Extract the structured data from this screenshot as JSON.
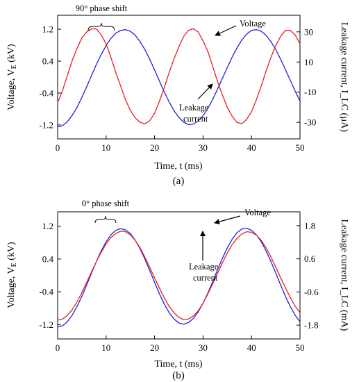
{
  "chart_data": [
    {
      "type": "line",
      "panel_label": "(a)",
      "xlabel": "Time, t (ms)",
      "ylabel_left": "Voltage, V_E (kV)",
      "ylabel_right": "Leakage current, I_LC (µA)",
      "xlim": [
        0,
        50
      ],
      "ylim_left": [
        -1.55,
        1.55
      ],
      "ylim_right": [
        -41,
        41
      ],
      "xticks": [
        "0",
        "10",
        "20",
        "30",
        "40",
        "50"
      ],
      "yticks_left": [
        "1.2",
        "0.4",
        "-0.4",
        "-1.2"
      ],
      "yticks_right": [
        "30",
        "10",
        "-10",
        "-30"
      ],
      "annotations": {
        "phase_shift": "90° phase shift",
        "voltage": "Voltage",
        "leakage": [
          "Leakage",
          "current"
        ]
      },
      "series": [
        {
          "axis": "left",
          "color": "#1f1fd6",
          "x": [
            0,
            1,
            2,
            3,
            4,
            5,
            6,
            7,
            8,
            9,
            10,
            11,
            12,
            13,
            14,
            15,
            16,
            17,
            18,
            19,
            20,
            21,
            22,
            23,
            24,
            25,
            26,
            27,
            28,
            29,
            30,
            31,
            32,
            33,
            34,
            35,
            36,
            37,
            38,
            39,
            40,
            41,
            42,
            43,
            44,
            45,
            46,
            47,
            48,
            49,
            50
          ],
          "y": [
            -1.25,
            -1.22,
            -1.12,
            -0.96,
            -0.76,
            -0.51,
            -0.24,
            0.04,
            0.32,
            0.57,
            0.79,
            0.97,
            1.1,
            1.17,
            1.19,
            1.15,
            1.05,
            0.89,
            0.69,
            0.45,
            0.18,
            -0.1,
            -0.37,
            -0.62,
            -0.84,
            -1.01,
            -1.13,
            -1.19,
            -1.18,
            -1.1,
            -0.97,
            -0.78,
            -0.56,
            -0.3,
            -0.03,
            0.24,
            0.5,
            0.73,
            0.93,
            1.08,
            1.17,
            1.19,
            1.15,
            1.05,
            0.89,
            0.69,
            0.45,
            0.19,
            -0.08,
            -0.35,
            -0.6
          ]
        },
        {
          "axis": "right",
          "color": "#e81e1e",
          "x": [
            0,
            1,
            2,
            3,
            4,
            5,
            6,
            7,
            8,
            9,
            10,
            11,
            12,
            13,
            14,
            15,
            16,
            17,
            18,
            19,
            20,
            21,
            22,
            23,
            24,
            25,
            26,
            27,
            28,
            29,
            30,
            31,
            32,
            33,
            34,
            35,
            36,
            37,
            38,
            39,
            40,
            41,
            42,
            43,
            44,
            45,
            46,
            47,
            48,
            49,
            50
          ],
          "y": [
            -17,
            -9,
            1,
            11,
            19,
            26,
            30,
            32,
            32,
            28,
            22,
            13,
            3,
            -6,
            -15,
            -22,
            -27,
            -30,
            -31,
            -29,
            -24,
            -16,
            -7,
            3,
            12,
            20,
            27,
            31,
            32,
            30,
            24,
            17,
            7,
            -3,
            -12,
            -20,
            -26,
            -30,
            -31,
            -28,
            -23,
            -15,
            -6,
            4,
            13,
            21,
            27,
            31,
            31,
            28,
            22
          ]
        }
      ]
    },
    {
      "type": "line",
      "panel_label": "(b)",
      "xlabel": "Time, t (ms)",
      "ylabel_left": "Voltage, V_E (kV)",
      "ylabel_right": "Leakage current, I_LC (mA)",
      "xlim": [
        0,
        50
      ],
      "ylim_left": [
        -1.55,
        1.55
      ],
      "ylim_right": [
        -2.3,
        2.3
      ],
      "xticks": [
        "0",
        "10",
        "20",
        "30",
        "40",
        "50"
      ],
      "yticks_left": [
        "1.2",
        "0.4",
        "-0.4",
        "-1.2"
      ],
      "yticks_right": [
        "1.8",
        "0.6",
        "-0.6",
        "-1.8"
      ],
      "annotations": {
        "phase_shift": "0° phase shift",
        "voltage": "Voltage",
        "leakage": [
          "Leakage",
          "current"
        ]
      },
      "series": [
        {
          "axis": "left",
          "color": "#1f1fd6",
          "x": [
            0,
            1,
            2,
            3,
            4,
            5,
            6,
            7,
            8,
            9,
            10,
            11,
            12,
            13,
            14,
            15,
            16,
            17,
            18,
            19,
            20,
            21,
            22,
            23,
            24,
            25,
            26,
            27,
            28,
            29,
            30,
            31,
            32,
            33,
            34,
            35,
            36,
            37,
            38,
            39,
            40,
            41,
            42,
            43,
            44,
            45,
            46,
            47,
            48,
            49,
            50
          ],
          "y": [
            -1.26,
            -1.23,
            -1.13,
            -0.97,
            -0.76,
            -0.51,
            -0.23,
            0.06,
            0.34,
            0.6,
            0.82,
            0.99,
            1.1,
            1.14,
            1.11,
            1.02,
            0.86,
            0.65,
            0.4,
            0.12,
            -0.17,
            -0.45,
            -0.7,
            -0.91,
            -1.06,
            -1.16,
            -1.19,
            -1.15,
            -1.05,
            -0.89,
            -0.68,
            -0.43,
            -0.15,
            0.14,
            0.42,
            0.67,
            0.88,
            1.04,
            1.13,
            1.15,
            1.1,
            0.99,
            0.82,
            0.6,
            0.34,
            0.06,
            -0.23,
            -0.51,
            -0.76,
            -0.97,
            -1.13
          ]
        },
        {
          "axis": "right",
          "color": "#e81e1e",
          "x": [
            0,
            1,
            2,
            3,
            4,
            5,
            6,
            7,
            8,
            9,
            10,
            11,
            12,
            13,
            14,
            15,
            16,
            17,
            18,
            19,
            20,
            21,
            22,
            23,
            24,
            25,
            26,
            27,
            28,
            29,
            30,
            31,
            32,
            33,
            34,
            35,
            36,
            37,
            38,
            39,
            40,
            41,
            42,
            43,
            44,
            45,
            46,
            47,
            48,
            49,
            50
          ],
          "y": [
            -1.62,
            -1.58,
            -1.45,
            -1.24,
            -0.96,
            -0.62,
            -0.25,
            0.13,
            0.5,
            0.84,
            1.14,
            1.37,
            1.52,
            1.6,
            1.58,
            1.47,
            1.27,
            1.0,
            0.66,
            0.29,
            -0.09,
            -0.46,
            -0.81,
            -1.12,
            -1.35,
            -1.52,
            -1.6,
            -1.58,
            -1.47,
            -1.28,
            -1.01,
            -0.67,
            -0.3,
            0.08,
            0.46,
            0.81,
            1.11,
            1.34,
            1.5,
            1.58,
            1.56,
            1.46,
            1.27,
            1.0,
            0.67,
            0.3,
            -0.08,
            -0.45,
            -0.8,
            -1.11,
            -1.35
          ]
        }
      ]
    }
  ]
}
